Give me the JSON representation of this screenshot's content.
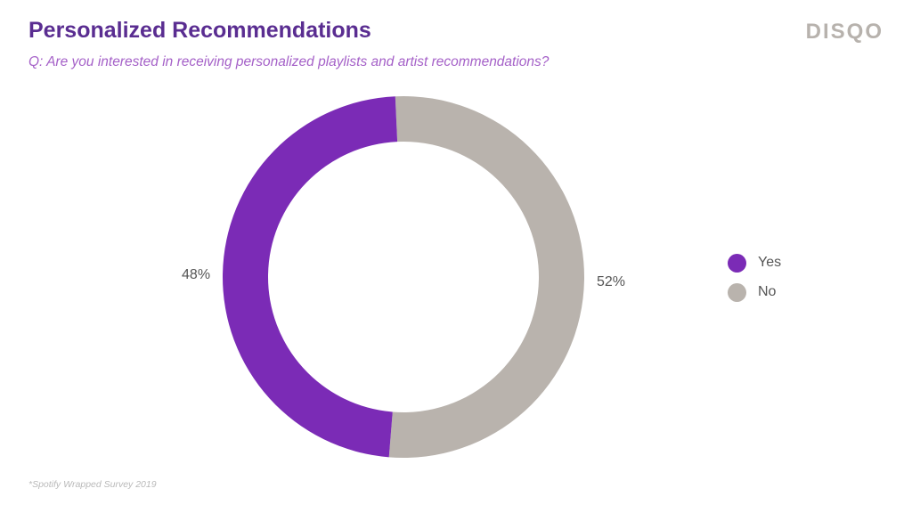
{
  "header": {
    "title": "Personalized Recommendations",
    "subtitle": "Q: Are you interested in receiving personalized playlists and artist recommendations?",
    "logo_text": "DISQO"
  },
  "footnote": "*Spotify Wrapped Survey 2019",
  "colors": {
    "title": "#5a2d91",
    "subtitle": "#a561c8",
    "yes": "#7b2bb6",
    "no": "#b9b3ad",
    "label": "#555555"
  },
  "chart_data": {
    "type": "pie",
    "variant": "donut",
    "categories": [
      "Yes",
      "No"
    ],
    "values": [
      48,
      52
    ],
    "labels": [
      "48%",
      "52%"
    ],
    "colors": [
      "#7b2bb6",
      "#b9b3ad"
    ],
    "legend_position": "right"
  },
  "legend": {
    "items": [
      {
        "label": "Yes",
        "color": "#7b2bb6"
      },
      {
        "label": "No",
        "color": "#b9b3ad"
      }
    ]
  }
}
